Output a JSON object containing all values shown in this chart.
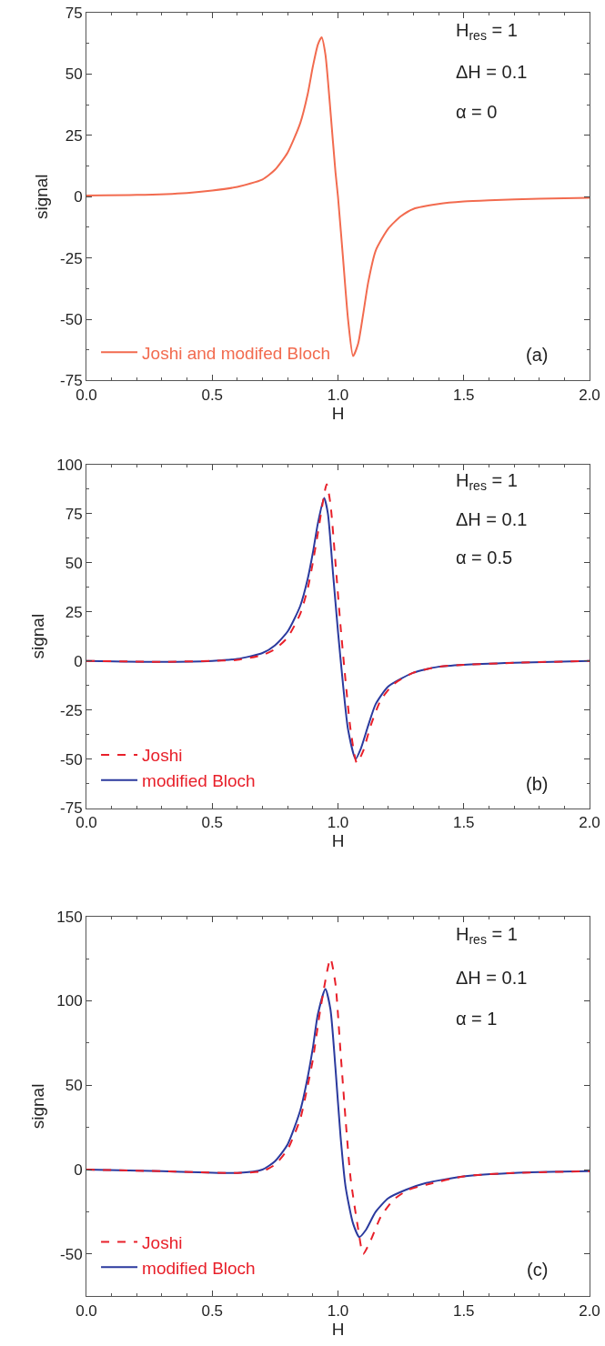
{
  "chart_data": [
    {
      "type": "line",
      "xlabel": "H",
      "ylabel": "signal",
      "xlim": [
        0,
        2
      ],
      "xticks": [
        {
          "value": 0,
          "label": "0.0"
        },
        {
          "value": 0.5,
          "label": "0.5"
        },
        {
          "value": 1,
          "label": "1.0"
        },
        {
          "value": 1.5,
          "label": "1.5"
        },
        {
          "value": 2,
          "label": "2.0"
        }
      ],
      "ylim": [
        -75,
        75
      ],
      "yticks": [
        -75,
        -50,
        -25,
        0,
        25,
        50,
        75
      ],
      "legend": "bottom left",
      "annotations": [
        "H$_{res}$ = 1",
        "ΔH = 0.1",
        "α = 0",
        "(a)"
      ],
      "series": [
        {
          "name": "Joshi and modifed Bloch",
          "color": "#f26b4f",
          "line_style": "solid",
          "x": [
            0,
            0.2,
            0.4,
            0.5,
            0.6,
            0.7,
            0.75,
            0.8,
            0.85,
            0.88,
            0.9,
            0.92,
            0.935,
            0.95,
            0.97,
            0.99,
            1.0,
            1.02,
            1.04,
            1.06,
            1.08,
            1.1,
            1.12,
            1.15,
            1.2,
            1.25,
            1.3,
            1.4,
            1.5,
            1.6,
            1.8,
            2.0
          ],
          "values": [
            0.5,
            0.7,
            1.5,
            2.5,
            4,
            7,
            11,
            18,
            30,
            42,
            53,
            62,
            65,
            58,
            35,
            10,
            0,
            -25,
            -50,
            -65,
            -60,
            -48,
            -35,
            -22,
            -13,
            -8,
            -5,
            -3,
            -2,
            -1.5,
            -0.8,
            -0.5
          ]
        }
      ]
    },
    {
      "type": "line",
      "xlabel": "H",
      "ylabel": "signal",
      "xlim": [
        0,
        2
      ],
      "xticks": [
        {
          "value": 0,
          "label": "0.0"
        },
        {
          "value": 0.5,
          "label": "0.5"
        },
        {
          "value": 1,
          "label": "1.0"
        },
        {
          "value": 1.5,
          "label": "1.5"
        },
        {
          "value": 2,
          "label": "2.0"
        }
      ],
      "ylim": [
        -75,
        100
      ],
      "yticks": [
        -75,
        -50,
        -25,
        0,
        25,
        50,
        75,
        100
      ],
      "legend": "bottom left",
      "annotations": [
        "H$_{res}$ = 1",
        "ΔH = 0.1",
        "α = 0.5",
        "(b)"
      ],
      "series": [
        {
          "name": "Joshi",
          "color": "#e8202a",
          "line_style": "dashed",
          "x": [
            0,
            0.3,
            0.5,
            0.6,
            0.7,
            0.75,
            0.8,
            0.85,
            0.88,
            0.9,
            0.92,
            0.955,
            0.97,
            0.99,
            1.01,
            1.03,
            1.05,
            1.075,
            1.1,
            1.13,
            1.17,
            1.22,
            1.3,
            1.4,
            1.5,
            1.7,
            2.0
          ],
          "values": [
            0,
            -0.5,
            0,
            0.5,
            3,
            6,
            12,
            24,
            37,
            50,
            65,
            90,
            80,
            50,
            18,
            -10,
            -35,
            -52,
            -46,
            -33,
            -20,
            -12,
            -6,
            -3,
            -2,
            -1,
            0
          ]
        },
        {
          "name": "modified Bloch",
          "color": "#2b3a9e",
          "line_style": "solid",
          "x": [
            0,
            0.3,
            0.5,
            0.6,
            0.7,
            0.75,
            0.8,
            0.85,
            0.88,
            0.9,
            0.92,
            0.945,
            0.96,
            0.98,
            1.0,
            1.02,
            1.04,
            1.07,
            1.09,
            1.12,
            1.15,
            1.2,
            1.3,
            1.4,
            1.5,
            1.7,
            2.0
          ],
          "values": [
            0,
            -0.5,
            0,
            1,
            4,
            8,
            15,
            28,
            42,
            55,
            70,
            83,
            75,
            45,
            15,
            -12,
            -35,
            -50,
            -45,
            -33,
            -22,
            -13,
            -6,
            -3,
            -2,
            -1,
            0
          ]
        }
      ]
    },
    {
      "type": "line",
      "xlabel": "H",
      "ylabel": "signal",
      "xlim": [
        0,
        2
      ],
      "xticks": [
        {
          "value": 0,
          "label": "0.0"
        },
        {
          "value": 0.5,
          "label": "0.5"
        },
        {
          "value": 1,
          "label": "1.0"
        },
        {
          "value": 1.5,
          "label": "1.5"
        },
        {
          "value": 2,
          "label": "2.0"
        }
      ],
      "ylim": [
        -75,
        150
      ],
      "yticks": [
        -50,
        0,
        50,
        100,
        150
      ],
      "legend": "bottom left",
      "annotations": [
        "H$_{res}$ = 1",
        "ΔH = 0.1",
        "α = 1",
        "(c)"
      ],
      "series": [
        {
          "name": "Joshi",
          "color": "#e8202a",
          "line_style": "dashed",
          "x": [
            0,
            0.3,
            0.6,
            0.7,
            0.75,
            0.8,
            0.85,
            0.88,
            0.9,
            0.93,
            0.97,
            0.99,
            1.01,
            1.03,
            1.05,
            1.08,
            1.1,
            1.13,
            1.17,
            1.22,
            1.28,
            1.35,
            1.5,
            1.7,
            2.0
          ],
          "values": [
            0,
            -1,
            -2,
            -1,
            3,
            12,
            30,
            50,
            65,
            95,
            125,
            110,
            70,
            30,
            -5,
            -35,
            -50,
            -42,
            -28,
            -18,
            -12,
            -9,
            -4,
            -2,
            -1
          ]
        },
        {
          "name": "modified Bloch",
          "color": "#2b3a9e",
          "line_style": "solid",
          "x": [
            0,
            0.3,
            0.6,
            0.7,
            0.75,
            0.8,
            0.85,
            0.88,
            0.9,
            0.92,
            0.95,
            0.97,
            0.99,
            1.01,
            1.03,
            1.06,
            1.085,
            1.11,
            1.15,
            1.2,
            1.27,
            1.35,
            1.5,
            1.7,
            2.0
          ],
          "values": [
            0,
            -1,
            -2,
            0,
            5,
            15,
            35,
            55,
            72,
            92,
            107,
            95,
            60,
            20,
            -10,
            -32,
            -40,
            -36,
            -25,
            -17,
            -12,
            -8,
            -4,
            -2,
            -1
          ]
        }
      ]
    }
  ]
}
